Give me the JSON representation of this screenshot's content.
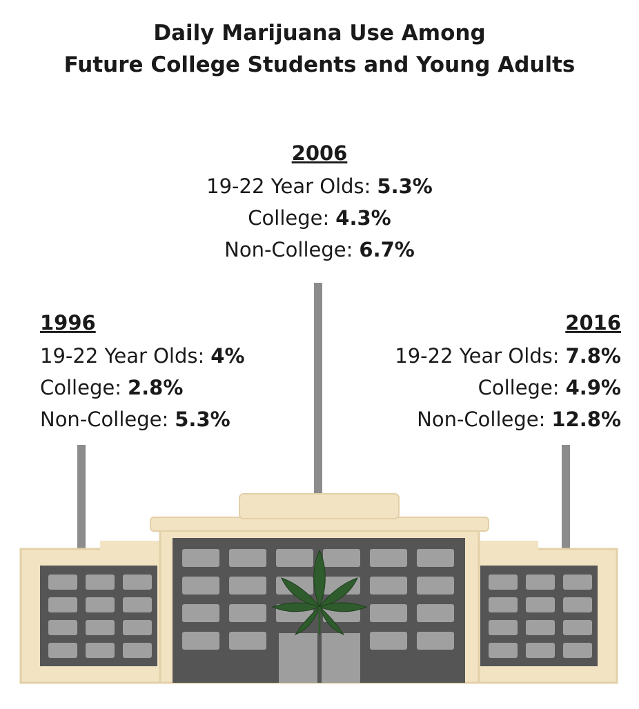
{
  "title": [
    "Daily Marijuana Use Among",
    "Future College Students and Young Adults"
  ],
  "panels": [
    {
      "year": "1996",
      "rows": [
        {
          "label": "19-22 Year Olds:",
          "value": "4%"
        },
        {
          "label": "College:",
          "value": "2.8%"
        },
        {
          "label": "Non-College:",
          "value": "5.3%"
        }
      ]
    },
    {
      "year": "2006",
      "rows": [
        {
          "label": "19-22 Year Olds:",
          "value": "5.3%"
        },
        {
          "label": "College:",
          "value": "4.3%"
        },
        {
          "label": "Non-College:",
          "value": "6.7%"
        }
      ]
    },
    {
      "year": "2016",
      "rows": [
        {
          "label": "19-22 Year Olds:",
          "value": "7.8%"
        },
        {
          "label": "College:",
          "value": "4.9%"
        },
        {
          "label": "Non-College:",
          "value": "12.8%"
        }
      ]
    }
  ]
}
